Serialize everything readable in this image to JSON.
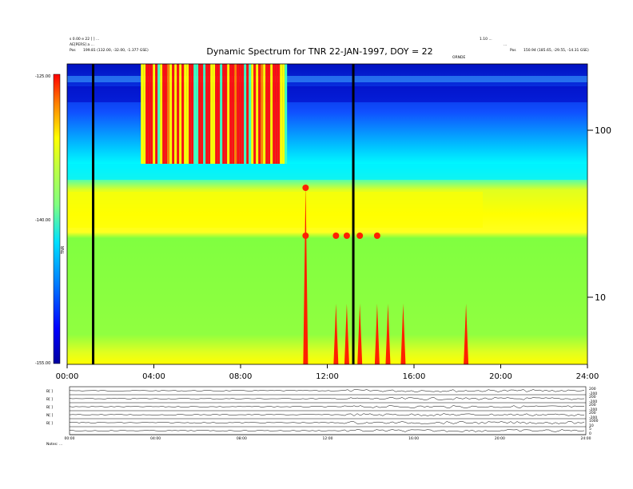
{
  "title": "Dynamic Spectrum for TNR 22-JAN-1997, DOY = 22",
  "header_left": [
    "s 0.00 e 22 [ ] ...",
    "AE[PERS] a ...",
    "Pos"
  ],
  "header_right": [
    "1.10 ... ",
    "...",
    "Pos"
  ],
  "pos_left": "199.81 (132.00, -32.00, -1.377 GSE)",
  "pos_right": "150.94 (185.65, -29.55, -14.31 GSE)",
  "marker_label": "ORNDE",
  "colorbar": {
    "ticks": [
      "-125.00",
      "-140.00",
      "-155.00"
    ],
    "label": "TNR",
    "colors": [
      "#0000a0",
      "#0000ff",
      "#0080ff",
      "#00e0ff",
      "#80ff80",
      "#c0ff40",
      "#ffff00",
      "#ff8000",
      "#ff0000"
    ]
  },
  "chart_data": {
    "type": "heatmap",
    "title": "Dynamic Spectrum for TNR 22-JAN-1997, DOY = 22",
    "xlabel": "",
    "ylabel": "",
    "x_ticks": [
      "00:00",
      "04:00",
      "08:00",
      "12:00",
      "16:00",
      "20:00",
      "24:00"
    ],
    "xlim_hours": [
      0,
      24
    ],
    "y_scale": "log",
    "y_unit": "kHz",
    "y_ticks": [
      10,
      100
    ],
    "zlim": [
      -155,
      -125
    ],
    "z_ticks": [
      -125,
      -140,
      -155
    ],
    "markers_hours": [
      1.2,
      13.2
    ],
    "bursts_hours": [
      11.0,
      12.4,
      12.9,
      13.5,
      14.3,
      14.8,
      15.5,
      18.4
    ]
  },
  "bottom_panel": {
    "rows": [
      {
        "label": "B[ ]",
        "scale": [
          "200",
          "-200"
        ]
      },
      {
        "label": "B[ ]",
        "scale": [
          "200",
          "-200"
        ]
      },
      {
        "label": "B[ ]",
        "scale": [
          "200",
          "-200"
        ]
      },
      {
        "label": "N[ ]",
        "scale": [
          "200",
          "-200"
        ]
      },
      {
        "label": "B[ ]",
        "scale": [
          "1000",
          "10"
        ]
      },
      {
        "label": "",
        "scale": [
          "5",
          "0"
        ]
      }
    ],
    "x_ticks": [
      "00:00",
      "04:00",
      "08:00",
      "12:00",
      "16:00",
      "20:00",
      "24:00"
    ],
    "footer": "Notes: ..."
  }
}
